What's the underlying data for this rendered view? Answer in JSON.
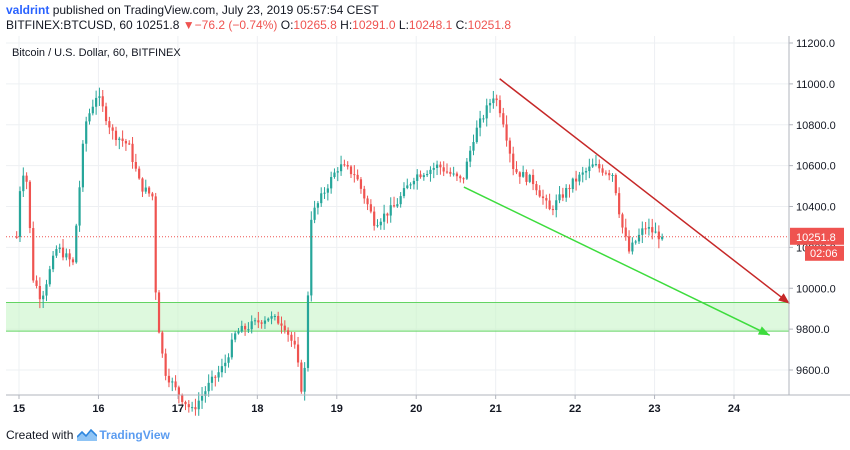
{
  "header": {
    "user": "valdrint",
    "published_text": "published on TradingView.com, July 23, 2019 05:57:54 CEST",
    "symbol": "BITFINEX:BTCUSD, 60",
    "last": "10251.8",
    "change": "−76.2 (−0.74%)",
    "o_label": "O:",
    "o_value": "10265.8",
    "h_label": "H:",
    "h_value": "10291.0",
    "l_label": "L:",
    "l_value": "10248.1",
    "c_label": "C:",
    "c_value": "10251.8"
  },
  "footer": {
    "created_with": "Created with",
    "brand": "TradingView"
  },
  "colors": {
    "up": "#26a69a",
    "down": "#ef5350",
    "support_zone": "#c8f5c8",
    "support_line": "#63d463",
    "upper_trend": "#c62828",
    "lower_trend": "#3ddc3d",
    "price_label": "#ef5350",
    "grid": "#eef0f3"
  },
  "chart_data": {
    "type": "candlestick",
    "title": "Bitcoin / U.S. Dollar, 60, BITFINEX",
    "x_ticks": [
      "15",
      "16",
      "17",
      "18",
      "19",
      "20",
      "21",
      "22",
      "23",
      "24"
    ],
    "y_ticks": [
      "9600.0",
      "9800.0",
      "10000.0",
      "10200.0",
      "10400.0",
      "10600.0",
      "10800.0",
      "11000.0",
      "11200.0"
    ],
    "ylim": [
      9490,
      11215
    ],
    "last_price": 10251.8,
    "last_price_label": "10251.8",
    "countdown_label": "02:06",
    "support_zone": [
      9790,
      9930
    ],
    "anchors_days": [
      [
        15.0,
        10420
      ],
      [
        15.1,
        10620
      ],
      [
        15.2,
        10050
      ],
      [
        15.3,
        9950
      ],
      [
        15.5,
        10200
      ],
      [
        15.7,
        10120
      ],
      [
        15.85,
        10800
      ],
      [
        16.0,
        10950
      ],
      [
        16.2,
        10760
      ],
      [
        16.4,
        10700
      ],
      [
        16.55,
        10500
      ],
      [
        16.7,
        10450
      ],
      [
        16.75,
        9900
      ],
      [
        16.85,
        9600
      ],
      [
        17.0,
        9500
      ],
      [
        17.2,
        9400
      ],
      [
        17.4,
        9520
      ],
      [
        17.6,
        9620
      ],
      [
        17.75,
        9780
      ],
      [
        17.95,
        9820
      ],
      [
        18.15,
        9860
      ],
      [
        18.35,
        9830
      ],
      [
        18.5,
        9700
      ],
      [
        18.6,
        9450
      ],
      [
        18.7,
        10350
      ],
      [
        18.9,
        10500
      ],
      [
        19.05,
        10600
      ],
      [
        19.25,
        10560
      ],
      [
        19.5,
        10320
      ],
      [
        19.75,
        10400
      ],
      [
        20.0,
        10550
      ],
      [
        20.3,
        10600
      ],
      [
        20.6,
        10520
      ],
      [
        20.75,
        10750
      ],
      [
        21.0,
        10950
      ],
      [
        21.1,
        10850
      ],
      [
        21.25,
        10580
      ],
      [
        21.5,
        10520
      ],
      [
        21.7,
        10380
      ],
      [
        22.0,
        10520
      ],
      [
        22.25,
        10600
      ],
      [
        22.5,
        10560
      ],
      [
        22.6,
        10320
      ],
      [
        22.7,
        10180
      ],
      [
        22.9,
        10300
      ],
      [
        23.1,
        10252
      ]
    ],
    "upper_trendline": {
      "from": [
        21.05,
        11025
      ],
      "to": [
        24.7,
        9925
      ]
    },
    "lower_trendline": {
      "from": [
        20.6,
        10495
      ],
      "to": [
        24.45,
        9770
      ]
    }
  }
}
